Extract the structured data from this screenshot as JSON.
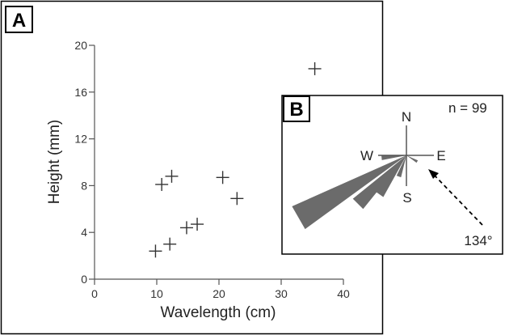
{
  "panels": {
    "a_label": "A",
    "b_label": "B"
  },
  "chart_data": [
    {
      "type": "scatter",
      "marker": "plus",
      "xlabel": "Wavelength (cm)",
      "ylabel": "Height (mm)",
      "xlim": [
        0,
        40
      ],
      "ylim": [
        0,
        20
      ],
      "xticks": [
        0,
        10,
        20,
        30,
        40
      ],
      "yticks": [
        0,
        4,
        8,
        12,
        16,
        20
      ],
      "grid": false,
      "points": [
        {
          "x": 9.8,
          "y": 2.4
        },
        {
          "x": 12.1,
          "y": 3.0
        },
        {
          "x": 14.8,
          "y": 4.4
        },
        {
          "x": 16.5,
          "y": 4.7
        },
        {
          "x": 10.8,
          "y": 8.1
        },
        {
          "x": 12.4,
          "y": 8.8
        },
        {
          "x": 20.6,
          "y": 8.7
        },
        {
          "x": 22.9,
          "y": 6.9
        },
        {
          "x": 35.4,
          "y": 18.0
        }
      ],
      "point_color": "#333333"
    },
    {
      "type": "rose",
      "n_label": "n = 99",
      "directions": [
        "N",
        "E",
        "S",
        "W"
      ],
      "mean_direction_deg": 134,
      "mean_direction_label": "134°",
      "petals": [
        {
          "azimuth": 240,
          "relative_length": 1.0
        },
        {
          "azimuth": 225,
          "relative_length": 0.55
        },
        {
          "azimuth": 215,
          "relative_length": 0.38
        },
        {
          "azimuth": 200,
          "relative_length": 0.18
        },
        {
          "azimuth": 265,
          "relative_length": 0.2
        },
        {
          "azimuth": 120,
          "relative_length": 0.1
        }
      ],
      "fill_color": "#6b6b6b"
    }
  ]
}
